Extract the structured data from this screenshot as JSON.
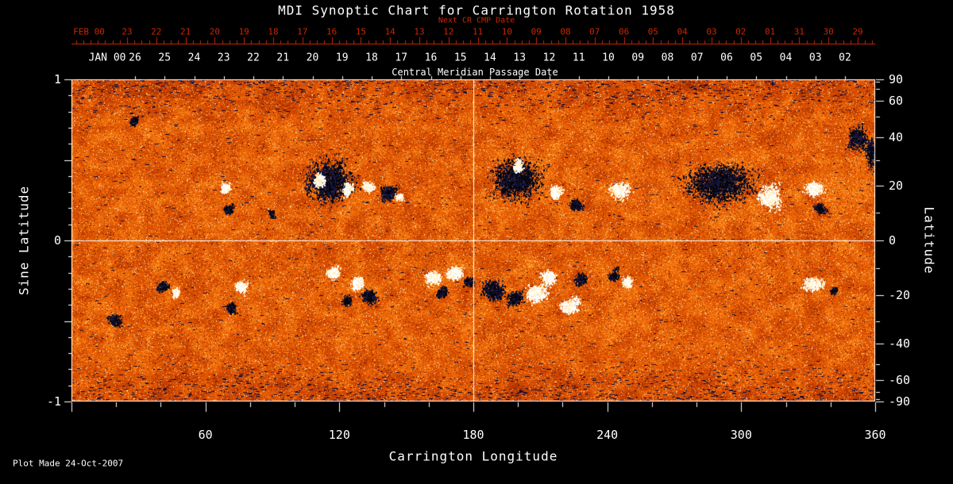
{
  "colors": {
    "background": "#000000",
    "axis_red": "#cc2600",
    "axis_white": "#ffffff"
  },
  "chart_data": {
    "type": "heatmap",
    "title": "MDI Synoptic Chart for Carrington Rotation 1958",
    "footnote": "Plot Made 24-Oct-2007",
    "x_axis": {
      "label": "Carrington Longitude",
      "range": [
        0,
        360
      ],
      "major_ticks": [
        60,
        120,
        180,
        240,
        300,
        360
      ],
      "minor_tick_step": 20
    },
    "y_axis_left": {
      "label": "Sine Latitude",
      "range": [
        -1,
        1
      ],
      "major_ticks": [
        1,
        0,
        -1
      ]
    },
    "y_axis_right": {
      "label": "Latitude",
      "tick_degrees": [
        90,
        60,
        40,
        20,
        0,
        -20,
        -40,
        -60,
        -90
      ],
      "minor_tick_degrees": [
        80,
        70,
        50,
        30,
        10,
        -10,
        -30,
        -50,
        -70,
        -80
      ]
    },
    "top_axis": {
      "label": "Next CR CMP Date",
      "month_label": "FEB 00",
      "tick_labels": [
        "23",
        "22",
        "21",
        "20",
        "19",
        "18",
        "17",
        "16",
        "15",
        "14",
        "13",
        "12",
        "11",
        "10",
        "09",
        "08",
        "07",
        "06",
        "05",
        "04",
        "03",
        "02",
        "01",
        "31",
        "30",
        "29"
      ]
    },
    "cmp_axis": {
      "label": "Central Meridian Passage Date",
      "month_label": "JAN 00",
      "tick_labels": [
        "26",
        "25",
        "24",
        "23",
        "22",
        "21",
        "20",
        "19",
        "18",
        "17",
        "16",
        "15",
        "14",
        "13",
        "12",
        "11",
        "10",
        "09",
        "08",
        "07",
        "06",
        "05",
        "04",
        "03",
        "02"
      ]
    },
    "crosshair": {
      "longitude": 180,
      "sine_latitude": 0
    },
    "palette": [
      [
        0.0,
        "#160004"
      ],
      [
        0.08,
        "#3a0a00"
      ],
      [
        0.2,
        "#7a1c00"
      ],
      [
        0.36,
        "#b03300"
      ],
      [
        0.52,
        "#d94d02"
      ],
      [
        0.68,
        "#ef6b08"
      ],
      [
        0.8,
        "#fb8a1a"
      ],
      [
        0.9,
        "#ffb347"
      ],
      [
        0.96,
        "#ffdf91"
      ],
      [
        1.0,
        "#fffbe6"
      ]
    ],
    "noise": {
      "seed": 1958,
      "coarse_cols": 84,
      "coarse_rows": 40,
      "streak_base": 0.18,
      "streak_polar": 0.62,
      "polar_threshold": 0.72,
      "navy": "#0a0c3c",
      "navy_chance": 0.004,
      "navy_chance_polar": 0.035,
      "bright_chance": 0.06,
      "dark_chance": 0.015
    },
    "active_regions": [
      {
        "lon": 115,
        "slat": 0.37,
        "sx": 11,
        "sy": 0.13,
        "pol": -1,
        "n": 2000
      },
      {
        "lon": 111,
        "slat": 0.37,
        "sx": 2.5,
        "sy": 0.045,
        "pol": 1,
        "n": 420
      },
      {
        "lon": 124,
        "slat": 0.32,
        "sx": 2.5,
        "sy": 0.045,
        "pol": 1,
        "n": 380
      },
      {
        "lon": 133,
        "slat": 0.33,
        "sx": 3,
        "sy": 0.04,
        "pol": 1,
        "n": 320
      },
      {
        "lon": 142,
        "slat": 0.29,
        "sx": 5,
        "sy": 0.05,
        "pol": -1,
        "n": 420
      },
      {
        "lon": 147,
        "slat": 0.27,
        "sx": 2,
        "sy": 0.03,
        "pol": 1,
        "n": 160
      },
      {
        "lon": 69,
        "slat": 0.33,
        "sx": 2.5,
        "sy": 0.04,
        "pol": 1,
        "n": 300
      },
      {
        "lon": 71,
        "slat": 0.19,
        "sx": 2.5,
        "sy": 0.035,
        "pol": -1,
        "n": 220
      },
      {
        "lon": 90,
        "slat": 0.16,
        "sx": 1.8,
        "sy": 0.03,
        "pol": -1,
        "n": 120
      },
      {
        "lon": 28,
        "slat": 0.74,
        "sx": 3,
        "sy": 0.04,
        "pol": -1,
        "n": 150
      },
      {
        "lon": 199,
        "slat": 0.38,
        "sx": 12,
        "sy": 0.14,
        "pol": -1,
        "n": 1900
      },
      {
        "lon": 200,
        "slat": 0.46,
        "sx": 2.5,
        "sy": 0.04,
        "pol": 1,
        "n": 300
      },
      {
        "lon": 217,
        "slat": 0.3,
        "sx": 3,
        "sy": 0.045,
        "pol": 1,
        "n": 380
      },
      {
        "lon": 227,
        "slat": 0.22,
        "sx": 3.5,
        "sy": 0.04,
        "pol": -1,
        "n": 300
      },
      {
        "lon": 246,
        "slat": 0.31,
        "sx": 5,
        "sy": 0.05,
        "pol": 1,
        "n": 500
      },
      {
        "lon": 290,
        "slat": 0.35,
        "sx": 16,
        "sy": 0.14,
        "pol": -1,
        "n": 2400
      },
      {
        "lon": 313,
        "slat": 0.27,
        "sx": 6,
        "sy": 0.08,
        "pol": 1,
        "n": 700
      },
      {
        "lon": 332,
        "slat": 0.32,
        "sx": 5,
        "sy": 0.05,
        "pol": 1,
        "n": 450
      },
      {
        "lon": 336,
        "slat": 0.2,
        "sx": 3.5,
        "sy": 0.035,
        "pol": -1,
        "n": 260
      },
      {
        "lon": 352,
        "slat": 0.62,
        "sx": 5,
        "sy": 0.09,
        "pol": -1,
        "n": 520
      },
      {
        "lon": 358,
        "slat": 0.55,
        "sx": 3,
        "sy": 0.12,
        "pol": -1,
        "n": 360
      },
      {
        "lon": 19,
        "slat": -0.5,
        "sx": 3.5,
        "sy": 0.045,
        "pol": -1,
        "n": 300
      },
      {
        "lon": 41,
        "slat": -0.29,
        "sx": 3,
        "sy": 0.04,
        "pol": -1,
        "n": 260
      },
      {
        "lon": 47,
        "slat": -0.33,
        "sx": 2.2,
        "sy": 0.035,
        "pol": 1,
        "n": 180
      },
      {
        "lon": 77,
        "slat": -0.29,
        "sx": 3,
        "sy": 0.045,
        "pol": 1,
        "n": 300
      },
      {
        "lon": 72,
        "slat": -0.41,
        "sx": 3,
        "sy": 0.04,
        "pol": -1,
        "n": 260
      },
      {
        "lon": 118,
        "slat": -0.19,
        "sx": 3.5,
        "sy": 0.045,
        "pol": 1,
        "n": 360
      },
      {
        "lon": 128,
        "slat": -0.27,
        "sx": 3.5,
        "sy": 0.05,
        "pol": 1,
        "n": 360
      },
      {
        "lon": 134,
        "slat": -0.35,
        "sx": 4,
        "sy": 0.05,
        "pol": -1,
        "n": 380
      },
      {
        "lon": 124,
        "slat": -0.38,
        "sx": 2.5,
        "sy": 0.035,
        "pol": -1,
        "n": 180
      },
      {
        "lon": 162,
        "slat": -0.24,
        "sx": 4,
        "sy": 0.05,
        "pol": 1,
        "n": 500
      },
      {
        "lon": 172,
        "slat": -0.2,
        "sx": 4.5,
        "sy": 0.05,
        "pol": 1,
        "n": 520
      },
      {
        "lon": 166,
        "slat": -0.32,
        "sx": 3,
        "sy": 0.04,
        "pol": -1,
        "n": 280
      },
      {
        "lon": 178,
        "slat": -0.26,
        "sx": 2.5,
        "sy": 0.035,
        "pol": -1,
        "n": 200
      },
      {
        "lon": 189,
        "slat": -0.31,
        "sx": 5,
        "sy": 0.07,
        "pol": -1,
        "n": 650
      },
      {
        "lon": 199,
        "slat": -0.36,
        "sx": 4,
        "sy": 0.05,
        "pol": -1,
        "n": 420
      },
      {
        "lon": 208,
        "slat": -0.33,
        "sx": 5,
        "sy": 0.06,
        "pol": 1,
        "n": 650
      },
      {
        "lon": 214,
        "slat": -0.23,
        "sx": 4,
        "sy": 0.05,
        "pol": 1,
        "n": 450
      },
      {
        "lon": 223,
        "slat": -0.4,
        "sx": 4.5,
        "sy": 0.05,
        "pol": 1,
        "n": 450
      },
      {
        "lon": 228,
        "slat": -0.24,
        "sx": 3,
        "sy": 0.04,
        "pol": -1,
        "n": 240
      },
      {
        "lon": 243,
        "slat": -0.21,
        "sx": 2.8,
        "sy": 0.04,
        "pol": -1,
        "n": 240
      },
      {
        "lon": 249,
        "slat": -0.26,
        "sx": 3,
        "sy": 0.04,
        "pol": 1,
        "n": 280
      },
      {
        "lon": 333,
        "slat": -0.27,
        "sx": 5,
        "sy": 0.05,
        "pol": 1,
        "n": 420
      },
      {
        "lon": 341,
        "slat": -0.31,
        "sx": 2,
        "sy": 0.03,
        "pol": -1,
        "n": 120
      }
    ]
  }
}
